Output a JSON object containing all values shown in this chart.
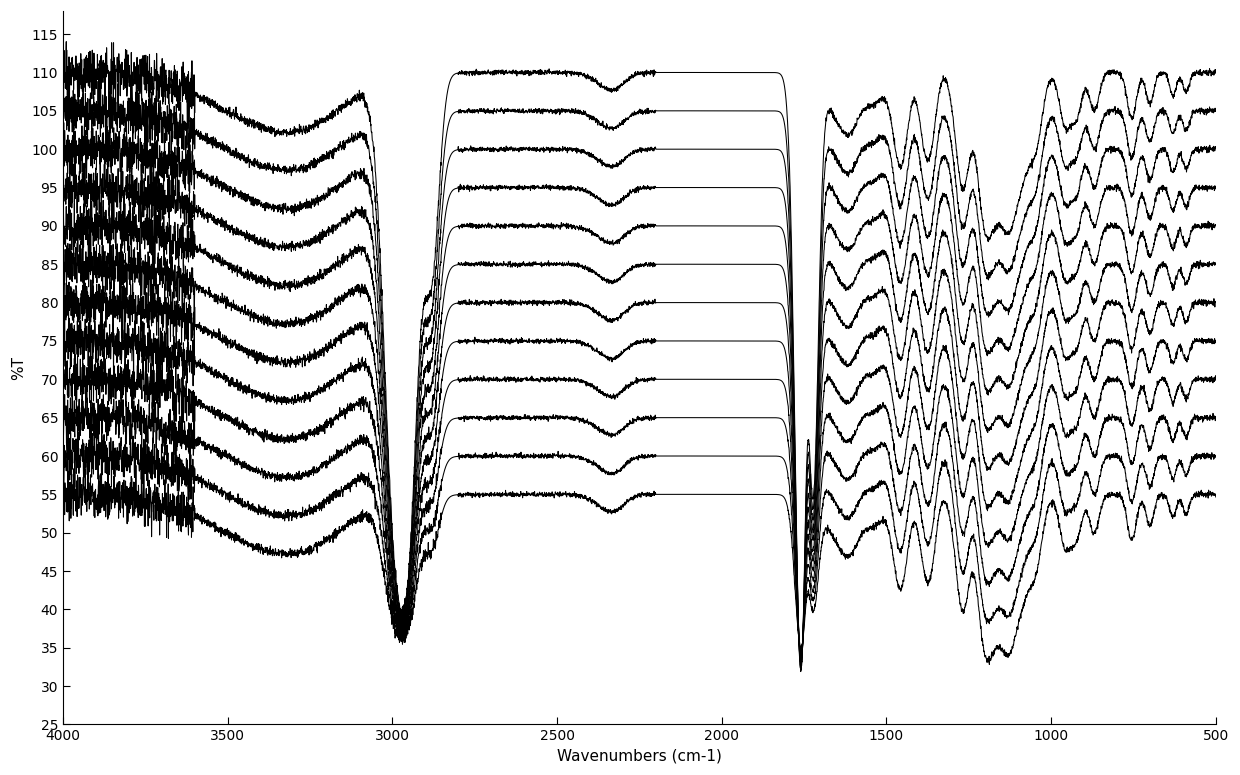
{
  "x_min": 500,
  "x_max": 4000,
  "y_min": 25,
  "y_max": 118,
  "xlabel": "Wavenumbers (cm-1)",
  "ylabel": "%T",
  "n_spectra": 12,
  "base_offsets": [
    55,
    60,
    65,
    70,
    75,
    80,
    85,
    90,
    95,
    100,
    105,
    110
  ],
  "line_color": "#000000",
  "line_width": 0.75,
  "background_color": "#ffffff",
  "yticks": [
    25,
    30,
    35,
    40,
    45,
    50,
    55,
    60,
    65,
    70,
    75,
    80,
    85,
    90,
    95,
    100,
    105,
    110,
    115
  ],
  "xticks": [
    4000,
    3500,
    3000,
    2500,
    2000,
    1500,
    1000,
    500
  ]
}
